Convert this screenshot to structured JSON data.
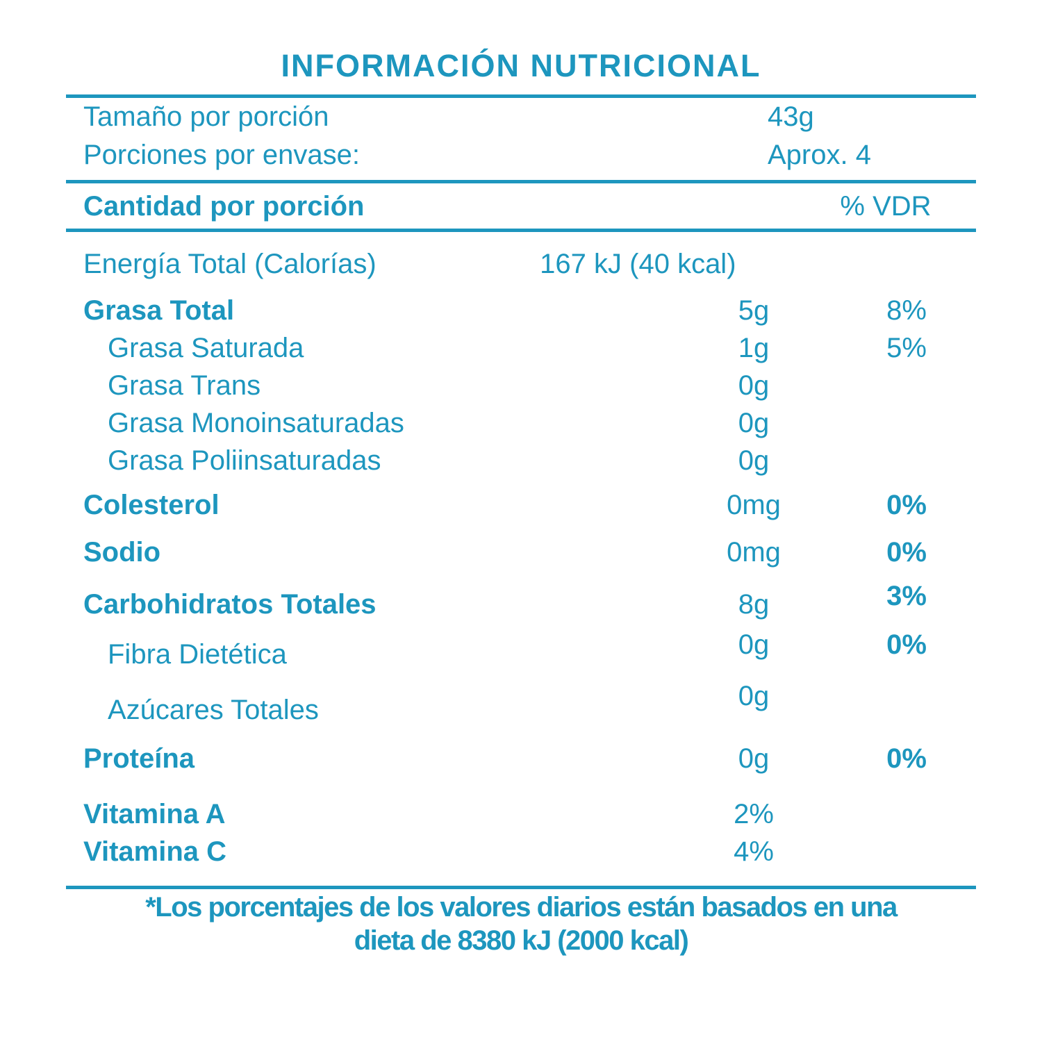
{
  "colors": {
    "accent": "#1D96BE",
    "background": "#FFFFFF"
  },
  "title": "INFORMACIÓN NUTRICIONAL",
  "serving": {
    "size_label": "Tamaño por porción",
    "size_value": "43g",
    "servings_label": "Porciones por envase:",
    "servings_value": "Aprox. 4"
  },
  "columns": {
    "amount_header": "Cantidad por porción",
    "dv_header": "% VDR"
  },
  "energy": {
    "label": "Energía Total (Calorías)",
    "value": "167 kJ (40 kcal)"
  },
  "nutrients": [
    {
      "label": "Grasa Total",
      "amount": "5g",
      "dv": "8%",
      "label_bold": true,
      "dv_bold": false,
      "indent": false
    },
    {
      "label": "Grasa Saturada",
      "amount": "1g",
      "dv": "5%",
      "label_bold": false,
      "dv_bold": false,
      "indent": true
    },
    {
      "label": "Grasa Trans",
      "amount": "0g",
      "dv": "",
      "label_bold": false,
      "dv_bold": false,
      "indent": true
    },
    {
      "label": "Grasa Monoinsaturadas",
      "amount": "0g",
      "dv": "",
      "label_bold": false,
      "dv_bold": false,
      "indent": true
    },
    {
      "label": "Grasa Poliinsaturadas",
      "amount": "0g",
      "dv": "",
      "label_bold": false,
      "dv_bold": false,
      "indent": true
    },
    {
      "label": "Colesterol",
      "amount": "0mg",
      "dv": "0%",
      "label_bold": true,
      "dv_bold": true,
      "indent": false
    },
    {
      "label": "Sodio",
      "amount": "0mg",
      "dv": "0%",
      "label_bold": true,
      "dv_bold": true,
      "indent": false
    },
    {
      "label": "Carbohidratos Totales",
      "amount": "8g",
      "dv": "3%",
      "label_bold": true,
      "dv_bold": true,
      "indent": false
    },
    {
      "label": "Fibra Dietética",
      "amount": "0g",
      "dv": "0%",
      "label_bold": false,
      "dv_bold": true,
      "indent": true
    },
    {
      "label": "Azúcares Totales",
      "amount": "0g",
      "dv": "",
      "label_bold": false,
      "dv_bold": false,
      "indent": true
    },
    {
      "label": "Proteína",
      "amount": "0g",
      "dv": "0%",
      "label_bold": true,
      "dv_bold": true,
      "indent": false
    }
  ],
  "vitamins": [
    {
      "label": "Vitamina A",
      "amount": "2%",
      "dv": "",
      "label_bold": true,
      "dv_bold": false,
      "indent": false
    },
    {
      "label": "Vitamina C",
      "amount": "4%",
      "dv": "",
      "label_bold": true,
      "dv_bold": false,
      "indent": false
    }
  ],
  "footnote": {
    "line1": "*Los porcentajes de los valores diarios están basados en una",
    "line2": "dieta de 8380 kJ (2000 kcal)"
  }
}
